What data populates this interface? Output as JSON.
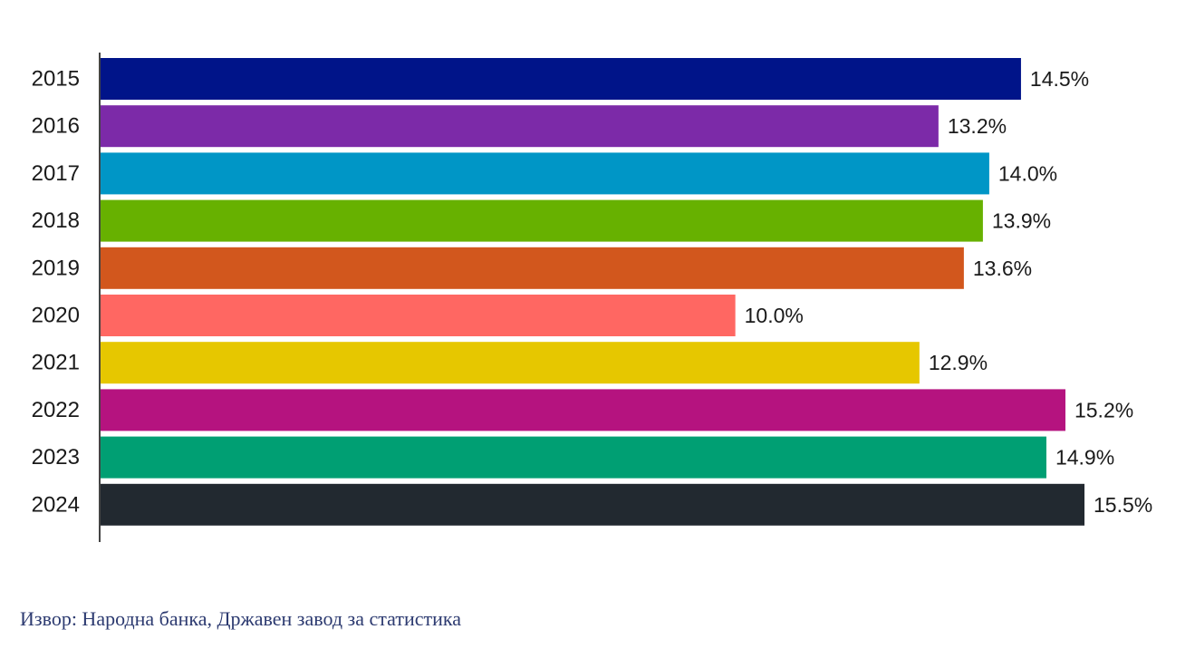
{
  "chart_data": {
    "type": "bar",
    "orientation": "horizontal",
    "categories": [
      "2015",
      "2016",
      "2017",
      "2018",
      "2019",
      "2020",
      "2021",
      "2022",
      "2023",
      "2024"
    ],
    "values": [
      14.5,
      13.2,
      14.0,
      13.9,
      13.6,
      10.0,
      12.9,
      15.2,
      14.9,
      15.5
    ],
    "value_labels": [
      "14.5%",
      "13.2%",
      "14.0%",
      "13.9%",
      "13.6%",
      "10.0%",
      "12.9%",
      "15.2%",
      "14.9%",
      "15.5%"
    ],
    "colors": [
      "#001489",
      "#7c2aa8",
      "#0096c6",
      "#67b100",
      "#d2571d",
      "#ff6762",
      "#e6c700",
      "#b5137f",
      "#009f73",
      "#222930"
    ],
    "xlim": [
      0,
      15.5
    ],
    "grid": false,
    "legend": "none"
  },
  "source": "Извор: Народна банка, Државен завод за статистика"
}
